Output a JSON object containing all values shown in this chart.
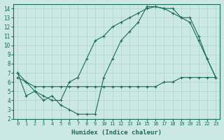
{
  "xlabel": "Humidex (Indice chaleur)",
  "ylabel": "",
  "bg_color": "#cce8e4",
  "grid_color": "#acd4cf",
  "line_color": "#1a6b5a",
  "xlim": [
    -0.5,
    23.5
  ],
  "ylim": [
    2,
    14.5
  ],
  "xticks": [
    0,
    1,
    2,
    3,
    4,
    5,
    6,
    7,
    8,
    9,
    10,
    11,
    12,
    13,
    14,
    15,
    16,
    17,
    18,
    19,
    20,
    21,
    22,
    23
  ],
  "yticks": [
    2,
    3,
    4,
    5,
    6,
    7,
    8,
    9,
    10,
    11,
    12,
    13,
    14
  ],
  "line1_x": [
    0,
    1,
    2,
    3,
    4,
    5,
    6,
    7,
    8,
    9,
    10,
    11,
    12,
    13,
    14,
    15,
    16,
    17,
    18,
    19,
    20,
    21,
    22,
    23
  ],
  "line1_y": [
    7.0,
    4.5,
    5.0,
    4.0,
    4.5,
    3.5,
    3.0,
    2.5,
    2.5,
    2.5,
    6.5,
    8.5,
    10.5,
    11.5,
    12.5,
    14.2,
    14.2,
    14.0,
    14.0,
    13.0,
    12.5,
    10.5,
    8.5,
    6.5
  ],
  "line2_x": [
    0,
    1,
    2,
    3,
    4,
    5,
    6,
    7,
    8,
    9,
    10,
    11,
    12,
    13,
    14,
    15,
    16,
    17,
    18,
    19,
    20,
    21,
    22,
    23
  ],
  "line2_y": [
    7.0,
    6.0,
    5.0,
    4.5,
    4.0,
    4.0,
    6.0,
    6.5,
    8.5,
    10.5,
    11.0,
    12.0,
    12.5,
    13.0,
    13.5,
    14.0,
    14.2,
    14.0,
    13.5,
    13.0,
    13.0,
    11.0,
    8.5,
    6.5
  ],
  "line3_x": [
    0,
    1,
    2,
    3,
    4,
    5,
    6,
    7,
    8,
    9,
    10,
    11,
    12,
    13,
    14,
    15,
    16,
    17,
    18,
    19,
    20,
    21,
    22,
    23
  ],
  "line3_y": [
    6.5,
    6.0,
    5.5,
    5.5,
    5.5,
    5.5,
    5.5,
    5.5,
    5.5,
    5.5,
    5.5,
    5.5,
    5.5,
    5.5,
    5.5,
    5.5,
    5.5,
    6.0,
    6.0,
    6.5,
    6.5,
    6.5,
    6.5,
    6.5
  ]
}
